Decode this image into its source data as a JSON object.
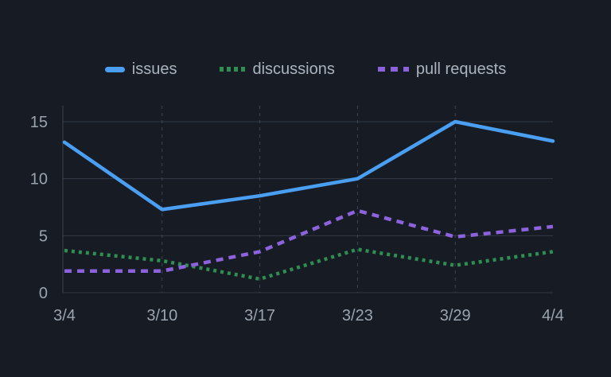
{
  "colors": {
    "background": "#161b24",
    "grid_line": "#333a45",
    "grid_dashed_line": "#3e4450",
    "axis_line": "#3e4450",
    "tick_label": "#9aa3ae",
    "legend_label": "#aab3be"
  },
  "chart_data": {
    "type": "line",
    "title": "",
    "xlabel": "",
    "ylabel": "",
    "legend_position": "top",
    "grid": {
      "horizontal": "solid",
      "vertical": "dashed"
    },
    "categories": [
      "3/4",
      "3/10",
      "3/17",
      "3/23",
      "3/29",
      "4/4"
    ],
    "yticks": [
      0,
      5,
      10,
      15
    ],
    "ylim": [
      0,
      15
    ],
    "series": [
      {
        "name": "issues",
        "color": "#4a9ff2",
        "line_style": "solid",
        "values": [
          13.2,
          7.3,
          8.5,
          10,
          15,
          13.3
        ]
      },
      {
        "name": "discussions",
        "color": "#2e8f51",
        "line_style": "dotted",
        "values": [
          3.7,
          2.8,
          1.2,
          3.8,
          2.4,
          3.6
        ]
      },
      {
        "name": "pull requests",
        "color": "#8d62dd",
        "line_style": "dashed",
        "values": [
          1.9,
          1.9,
          3.6,
          7.2,
          4.9,
          5.8
        ]
      }
    ]
  }
}
